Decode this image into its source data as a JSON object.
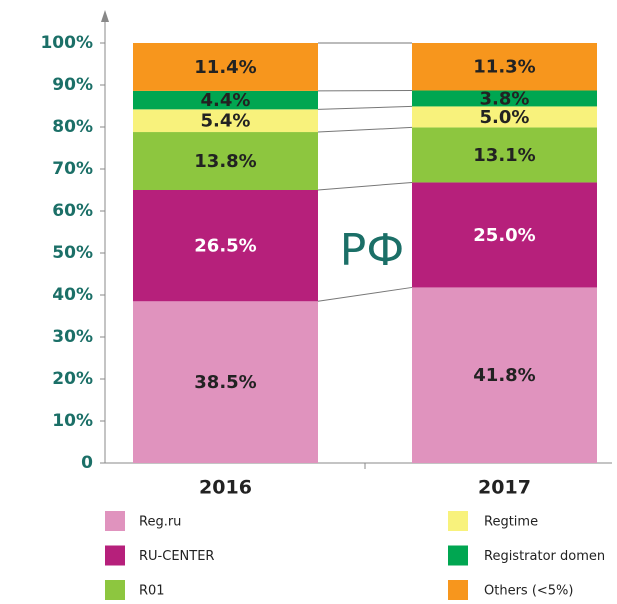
{
  "chart_data": {
    "type": "stacked_bar",
    "annotation": "РФ",
    "categories": [
      "2016",
      "2017"
    ],
    "series": [
      {
        "name": "Reg.ru",
        "color": "#e093be",
        "values": [
          38.5,
          41.8
        ],
        "value_labels": [
          "38.5%",
          "41.8%"
        ]
      },
      {
        "name": "RU-CENTER",
        "color": "#b6207b",
        "values": [
          26.5,
          25.0
        ],
        "value_labels": [
          "26.5%",
          "25.0%"
        ]
      },
      {
        "name": "R01",
        "color": "#8dc63f",
        "values": [
          13.8,
          13.1
        ],
        "value_labels": [
          "13.8%",
          "13.1%"
        ]
      },
      {
        "name": "Regtime",
        "color": "#f8f27c",
        "values": [
          5.4,
          5.0
        ],
        "value_labels": [
          "5.4%",
          "5.0%"
        ]
      },
      {
        "name": "Registrator domen",
        "color": "#00a651",
        "values": [
          4.4,
          3.8
        ],
        "value_labels": [
          "4.4%",
          "3.8%"
        ]
      },
      {
        "name": "Others (<5%)",
        "color": "#f7961d",
        "values": [
          11.4,
          11.3
        ],
        "value_labels": [
          "11.4%",
          "11.3%"
        ]
      }
    ],
    "ylim": [
      0,
      100
    ],
    "yticks": [
      0,
      {
        "value": 10,
        "label": "10%"
      },
      {
        "value": 20,
        "label": "20%"
      },
      {
        "value": 30,
        "label": "30%"
      },
      {
        "value": 40,
        "label": "40%"
      },
      {
        "value": 50,
        "label": "50%"
      },
      {
        "value": 60,
        "label": "60%"
      },
      {
        "value": 70,
        "label": "70%"
      },
      {
        "value": 80,
        "label": "80%"
      },
      {
        "value": 90,
        "label": "90%"
      },
      {
        "value": 100,
        "label": "100%"
      }
    ]
  }
}
